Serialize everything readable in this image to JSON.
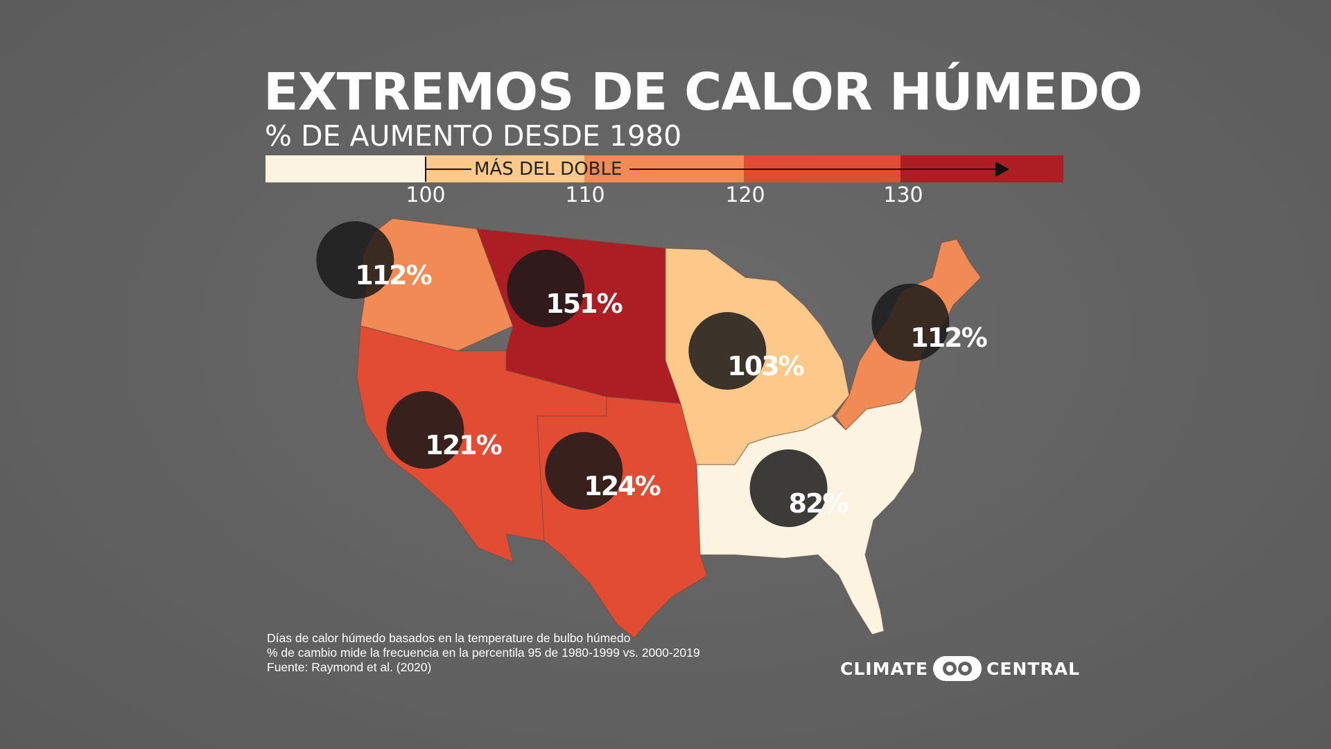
{
  "title": "EXTREMOS DE CALOR HÚMEDO",
  "subtitle": "% DE AUMENTO DESDE 1980",
  "legend": {
    "colors": [
      "#fdf3e1",
      "#fdc98a",
      "#f28a55",
      "#e24c33",
      "#ad1e24"
    ],
    "ticks": [
      "100",
      "110",
      "120",
      "130"
    ],
    "annotation": "MÁS DEL DOBLE"
  },
  "regions": [
    {
      "name": "Northwest",
      "value": "112%",
      "color": "#f28a55"
    },
    {
      "name": "Northern Rockies and Plains",
      "value": "151%",
      "color": "#ad1e24"
    },
    {
      "name": "Southwest",
      "value": "121%",
      "color": "#e24c33"
    },
    {
      "name": "South",
      "value": "124%",
      "color": "#e24c33"
    },
    {
      "name": "Upper Midwest",
      "value": "103%",
      "color": "#fdc98a"
    },
    {
      "name": "Southeast",
      "value": "82%",
      "color": "#fdf3e1"
    },
    {
      "name": "Northeast",
      "value": "112%",
      "color": "#f28a55"
    }
  ],
  "footnote": {
    "line1": "Días de calor húmedo basados en la temperature de bulbo húmedo",
    "line2": "% de cambio mide la frecuencia en la percentila 95 de 1980-1999 vs. 2000-2019",
    "line3": "Fuente: Raymond et al. (2020)"
  },
  "logo": {
    "left": "CLIMATE",
    "right": "CENTRAL"
  }
}
